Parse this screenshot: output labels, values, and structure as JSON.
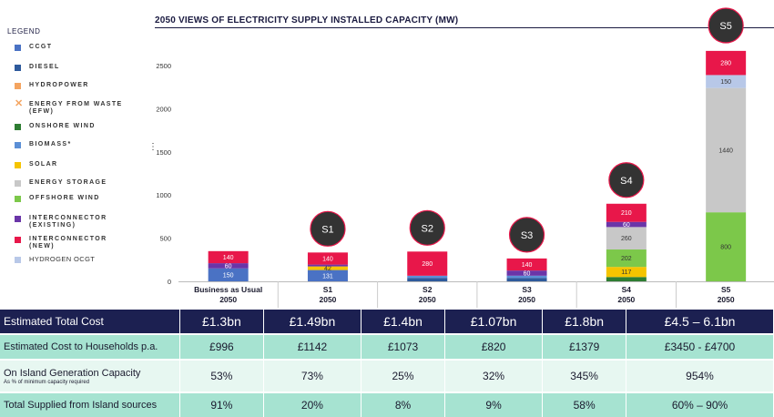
{
  "chart_data": {
    "type": "bar",
    "stacked": true,
    "title": "2050 VIEWS OF ELECTRICITY SUPPLY INSTALLED CAPACITY (MW)",
    "ylim": [
      0,
      2500
    ],
    "yticks": [
      "0",
      "500",
      "1000",
      "1500",
      "2000",
      "2500"
    ],
    "categories": [
      {
        "line1": "Business as Usual",
        "line2": "2050"
      },
      {
        "line1": "S1",
        "line2": "2050"
      },
      {
        "line1": "S2",
        "line2": "2050"
      },
      {
        "line1": "S3",
        "line2": "2050"
      },
      {
        "line1": "S4",
        "line2": "2050"
      },
      {
        "line1": "S5",
        "line2": "2050"
      }
    ],
    "scenario_badges": [
      "",
      "S1",
      "S2",
      "S3",
      "S4",
      "S5"
    ],
    "legend_title": "LEGEND",
    "series": [
      {
        "name": "CCGT",
        "color": "#4a72c4",
        "values": [
          150,
          131,
          0,
          0,
          0,
          0
        ],
        "labels": [
          "150",
          "131",
          "",
          "",
          "",
          ""
        ]
      },
      {
        "name": "DIESEL",
        "color": "#2e5a9c",
        "values": [
          0,
          0,
          40,
          40,
          0,
          0
        ],
        "labels": [
          "",
          "",
          "",
          "",
          "",
          ""
        ]
      },
      {
        "name": "HYDROPOWER",
        "color": "#f4a460",
        "values": [
          0,
          0,
          0,
          0,
          0,
          0
        ],
        "labels": [
          "",
          "",
          "",
          "",
          "",
          ""
        ]
      },
      {
        "name": "ENERGY FROM WASTE (EFW)",
        "color": "#f4a460",
        "values": [
          0,
          0,
          0,
          0,
          0,
          0
        ],
        "labels": [
          "",
          "",
          "",
          "",
          "",
          ""
        ]
      },
      {
        "name": "ONSHORE WIND",
        "color": "#2e7d32",
        "values": [
          0,
          0,
          0,
          0,
          50,
          0
        ],
        "labels": [
          "",
          "",
          "",
          "",
          "",
          ""
        ]
      },
      {
        "name": "BIOMASS*",
        "color": "#5b8fd6",
        "values": [
          0,
          0,
          25,
          25,
          0,
          0
        ],
        "labels": [
          "",
          "",
          "",
          "",
          "",
          ""
        ]
      },
      {
        "name": "SOLAR",
        "color": "#f5c400",
        "values": [
          0,
          42,
          0,
          0,
          117,
          0
        ],
        "labels": [
          "",
          "42",
          "",
          "",
          "117",
          ""
        ]
      },
      {
        "name": "ENERGY STORAGE",
        "color": "#c8c8c8",
        "values": [
          0,
          0,
          0,
          0,
          260,
          1440
        ],
        "labels": [
          "",
          "",
          "",
          "",
          "260",
          "1440"
        ]
      },
      {
        "name": "OFFSHORE WIND",
        "color": "#7cc84a",
        "values": [
          0,
          0,
          0,
          0,
          202,
          800
        ],
        "labels": [
          "",
          "",
          "",
          "",
          "202",
          "800"
        ]
      },
      {
        "name": "INTERCONNECTOR (EXISTING)",
        "color": "#6a35a8",
        "values": [
          60,
          21,
          0,
          60,
          60,
          0
        ],
        "labels": [
          "60",
          "",
          "",
          "60",
          "60",
          ""
        ]
      },
      {
        "name": "INTERCONNECTOR (NEW)",
        "color": "#e8174a",
        "values": [
          140,
          140,
          280,
          140,
          210,
          280
        ],
        "labels": [
          "140",
          "140",
          "280",
          "140",
          "210",
          "280"
        ]
      },
      {
        "name": "HYDROGEN OCGT",
        "color": "#b8c8e8",
        "values": [
          0,
          0,
          0,
          0,
          0,
          150
        ],
        "labels": [
          "",
          "",
          "",
          "",
          "",
          "150"
        ]
      }
    ]
  },
  "summary": {
    "rows": [
      {
        "label": "Estimated Total Cost",
        "sublabel": "",
        "values": [
          "£1.3bn",
          "£1.49bn",
          "£1.4bn",
          "£1.07bn",
          "£1.8bn",
          "£4.5 – 6.1bn"
        ]
      },
      {
        "label": "Estimated Cost to Households p.a.",
        "sublabel": "",
        "values": [
          "£996",
          "£1142",
          "£1073",
          "£820",
          "£1379",
          "£3450 - £4700"
        ]
      },
      {
        "label": "On Island Generation Capacity",
        "sublabel": "As % of minimum capacity required",
        "values": [
          "53%",
          "73%",
          "25%",
          "32%",
          "345%",
          "954%"
        ]
      },
      {
        "label": "Total Supplied from Island sources",
        "sublabel": "",
        "values": [
          "91%",
          "20%",
          "8%",
          "9%",
          "58%",
          "60% – 90%"
        ]
      }
    ]
  }
}
